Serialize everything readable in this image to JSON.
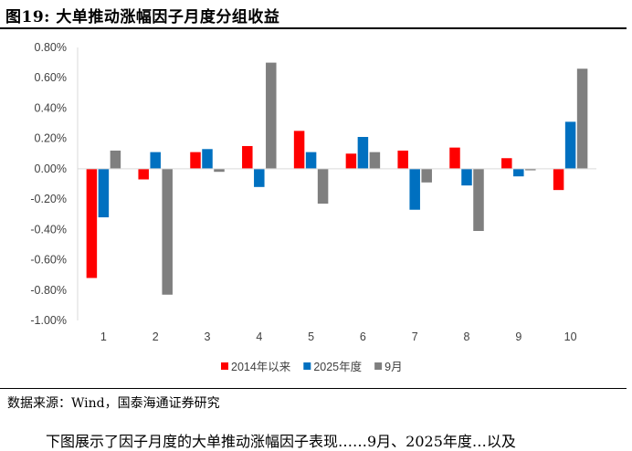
{
  "figure": {
    "title": "图19:  大单推动涨幅因子月度分组收益",
    "source": "数据来源：Wind，国泰海通证券研究",
    "body_text": "下图展示了因子月度的大单推动涨幅因子表现……9月、2025年度…以及"
  },
  "chart_data": {
    "type": "bar",
    "categories": [
      "1",
      "2",
      "3",
      "4",
      "5",
      "6",
      "7",
      "8",
      "9",
      "10"
    ],
    "series": [
      {
        "name": "2014年以来",
        "color": "#ff0000",
        "values": [
          -0.72,
          -0.07,
          0.11,
          0.15,
          0.25,
          0.1,
          0.12,
          0.14,
          0.07,
          -0.14
        ]
      },
      {
        "name": "2025年度",
        "color": "#0070c0",
        "values": [
          -0.32,
          0.11,
          0.13,
          -0.12,
          0.11,
          0.21,
          -0.27,
          -0.11,
          -0.05,
          0.31
        ]
      },
      {
        "name": "9月",
        "color": "#7f7f7f",
        "values": [
          0.12,
          -0.83,
          -0.02,
          0.7,
          -0.23,
          0.11,
          -0.09,
          -0.41,
          -0.01,
          0.66
        ]
      }
    ],
    "ylim": [
      -1.0,
      0.8
    ],
    "yticks": [
      "0.80%",
      "0.60%",
      "0.40%",
      "0.20%",
      "0.00%",
      "-0.20%",
      "-0.40%",
      "-0.60%",
      "-0.80%",
      "-1.00%"
    ],
    "unit": "%",
    "legend_position": "bottom",
    "grid": false
  }
}
